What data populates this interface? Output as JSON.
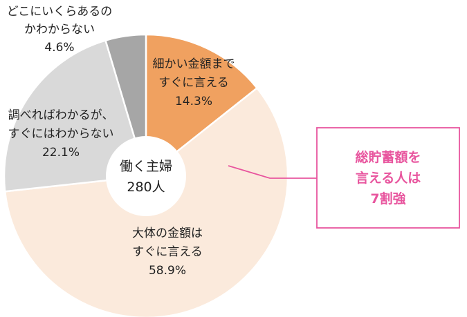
{
  "chart_data": {
    "type": "pie",
    "title": "",
    "center_label": [
      "働く主婦",
      "280人"
    ],
    "slices": [
      {
        "label": [
          "細かい金額まで",
          "すぐに言える"
        ],
        "value": 14.3,
        "display": "14.3%",
        "color": "#f0a160"
      },
      {
        "label": [
          "大体の金額は",
          "すぐに言える"
        ],
        "value": 58.9,
        "display": "58.9%",
        "color": "#fbeadc"
      },
      {
        "label": [
          "調べればわかるが、",
          "すぐにはわからない"
        ],
        "value": 22.1,
        "display": "22.1%",
        "color": "#d9d9d9"
      },
      {
        "label": [
          "どこにいくらあるの",
          "かわからない"
        ],
        "value": 4.6,
        "display": "4.6%",
        "color": "#a6a6a6"
      }
    ],
    "callout": {
      "lines": [
        "総貯蓄額を",
        "言える人は",
        "7割強"
      ],
      "color": "#e8559e"
    },
    "legend": "none"
  }
}
